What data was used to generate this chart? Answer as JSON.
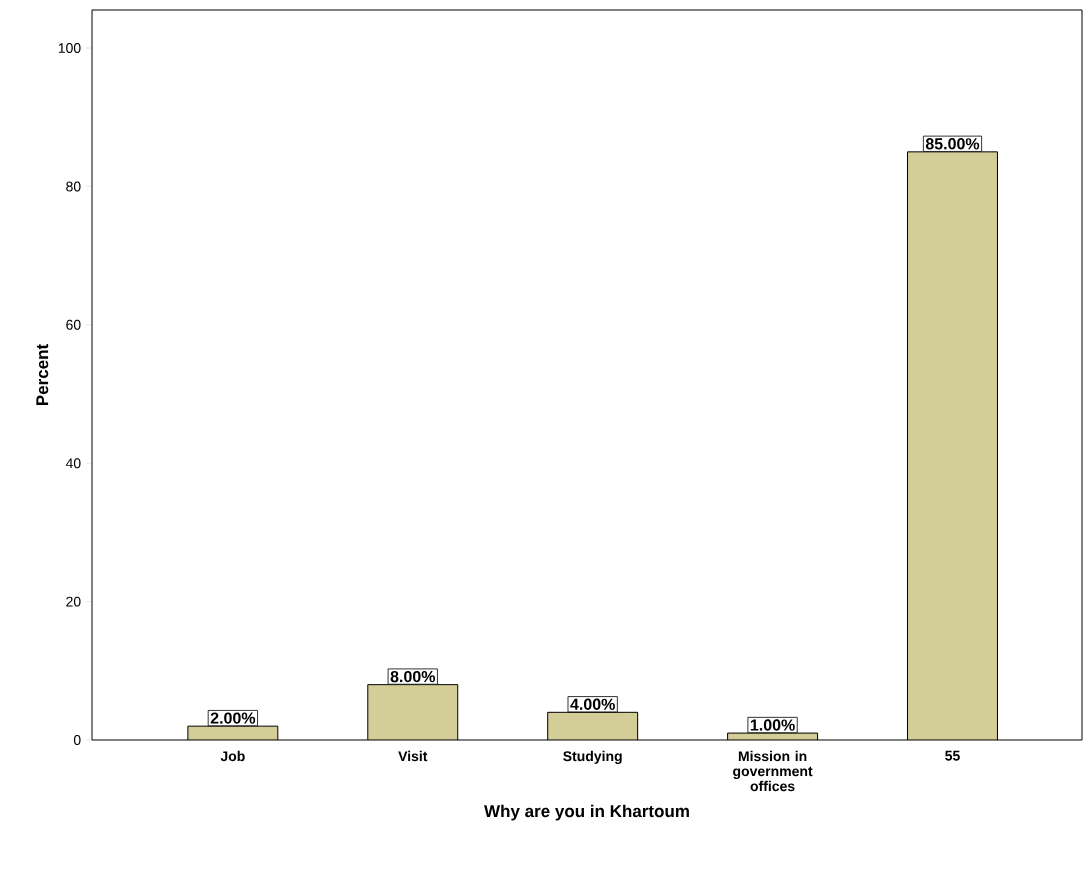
{
  "chart_data": {
    "type": "bar",
    "xlabel": "Why are you in Khartoum",
    "ylabel": "Percent",
    "categories": [
      "Job",
      "Visit",
      "Studying",
      "Mission in government offices",
      "55"
    ],
    "values": [
      2,
      8,
      4,
      1,
      85
    ],
    "value_labels": [
      "2.00%",
      "8.00%",
      "4.00%",
      "1.00%",
      "85.00%"
    ],
    "color": "#d3cd98",
    "ylim": [
      0,
      105.5
    ],
    "yticks": [
      0,
      20,
      40,
      60,
      80,
      100
    ]
  }
}
